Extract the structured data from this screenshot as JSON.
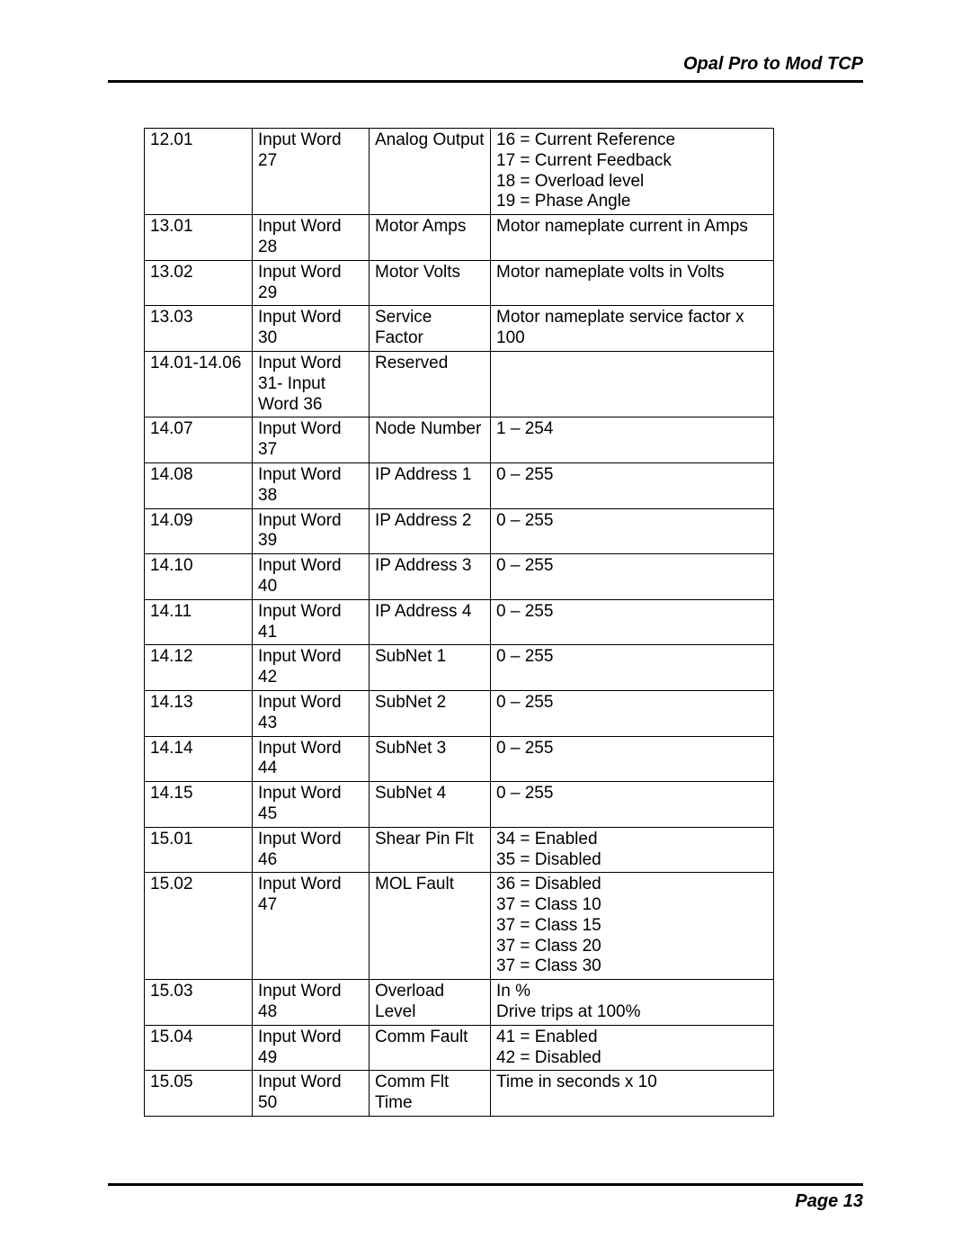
{
  "header": {
    "title": "Opal Pro to Mod TCP"
  },
  "footer": {
    "label": "Page 13"
  },
  "table": {
    "background": "#ffffff",
    "border_color": "#000000",
    "font_size": 19,
    "rows": [
      {
        "c1": "12.01",
        "c2": "Input Word 27",
        "c3": "Analog Output",
        "c4": "16 = Current Reference\n17 = Current Feedback\n18 = Overload level\n19 = Phase Angle"
      },
      {
        "c1": "13.01",
        "c2": "Input Word 28",
        "c3": "Motor Amps",
        "c4": "Motor nameplate current in Amps"
      },
      {
        "c1": "13.02",
        "c2": "Input Word 29",
        "c3": "Motor Volts",
        "c4": "Motor nameplate volts in Volts"
      },
      {
        "c1": "13.03",
        "c2": "Input Word 30",
        "c3": "Service Factor",
        "c4": "Motor nameplate service factor x 100"
      },
      {
        "c1": "14.01-14.06",
        "c2": "Input Word 31- Input Word 36",
        "c3": "Reserved",
        "c4": ""
      },
      {
        "c1": "14.07",
        "c2": "Input Word 37",
        "c3": "Node Number",
        "c4": "1 – 254"
      },
      {
        "c1": "14.08",
        "c2": "Input Word 38",
        "c3": "IP Address 1",
        "c4": "0 – 255"
      },
      {
        "c1": "14.09",
        "c2": "Input Word 39",
        "c3": "IP Address 2",
        "c4": "0 – 255"
      },
      {
        "c1": "14.10",
        "c2": "Input Word 40",
        "c3": "IP Address 3",
        "c4": "0 – 255"
      },
      {
        "c1": "14.11",
        "c2": "Input Word 41",
        "c3": "IP Address 4",
        "c4": "0 – 255"
      },
      {
        "c1": "14.12",
        "c2": "Input Word 42",
        "c3": "SubNet 1",
        "c4": "0 – 255"
      },
      {
        "c1": "14.13",
        "c2": "Input Word 43",
        "c3": "SubNet 2",
        "c4": "0 – 255"
      },
      {
        "c1": "14.14",
        "c2": "Input Word 44",
        "c3": "SubNet 3",
        "c4": "0 – 255"
      },
      {
        "c1": "14.15",
        "c2": "Input Word 45",
        "c3": "SubNet 4",
        "c4": "0 – 255"
      },
      {
        "c1": "15.01",
        "c2": "Input Word 46",
        "c3": "Shear Pin Flt",
        "c4": "34 = Enabled\n35 = Disabled"
      },
      {
        "c1": "15.02",
        "c2": "Input Word 47",
        "c3": "MOL Fault",
        "c4": "36 = Disabled\n37 = Class 10\n37 = Class 15\n37 = Class 20\n37 = Class 30"
      },
      {
        "c1": "15.03",
        "c2": "Input Word 48",
        "c3": "Overload Level",
        "c4": "In %\nDrive trips at 100%"
      },
      {
        "c1": "15.04",
        "c2": "Input Word 49",
        "c3": "Comm Fault",
        "c4": "41 = Enabled\n42 = Disabled"
      },
      {
        "c1": "15.05",
        "c2": "Input Word 50",
        "c3": "Comm Flt Time",
        "c4": "Time in seconds x 10"
      }
    ]
  }
}
